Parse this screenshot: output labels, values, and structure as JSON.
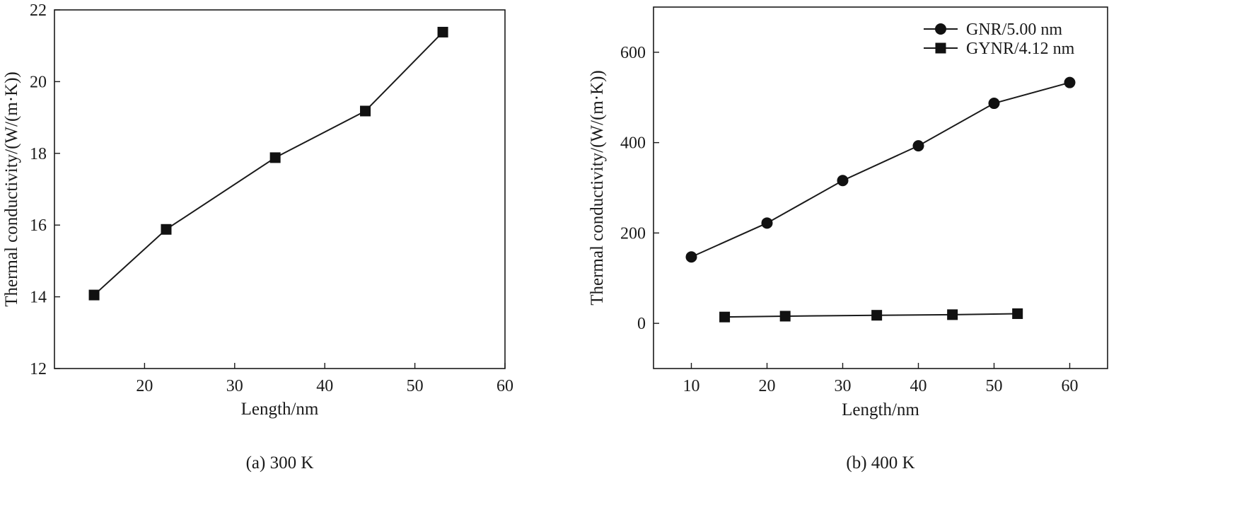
{
  "chart_data": [
    {
      "type": "line",
      "title": "",
      "caption": "(a) 300 K",
      "xlabel": "Length/nm",
      "ylabel": "Thermal conductivity/(W/(m·K))",
      "xlim": [
        10,
        60
      ],
      "ylim": [
        12,
        22
      ],
      "xticks": [
        20,
        30,
        40,
        50,
        60
      ],
      "yticks": [
        12,
        14,
        16,
        18,
        20,
        22
      ],
      "grid": false,
      "series": [
        {
          "name": "",
          "marker": "square",
          "x": [
            14.4,
            22.4,
            34.5,
            44.5,
            53.1
          ],
          "y": [
            14.05,
            15.88,
            17.88,
            19.18,
            21.38
          ]
        }
      ]
    },
    {
      "type": "line",
      "title": "",
      "caption": "(b) 400 K",
      "xlabel": "Length/nm",
      "ylabel": "Thermal conductivity/(W/(m·K))",
      "xlim": [
        5,
        65
      ],
      "ylim": [
        -100,
        700
      ],
      "xticks": [
        10,
        20,
        30,
        40,
        50,
        60
      ],
      "yticks": [
        0,
        200,
        400,
        600
      ],
      "grid": false,
      "legend_position": "top-right",
      "series": [
        {
          "name": "GNR/5.00 nm",
          "marker": "circle",
          "x": [
            10,
            20,
            30,
            40,
            50,
            60
          ],
          "y": [
            147,
            222,
            316,
            393,
            487,
            533
          ]
        },
        {
          "name": "GYNR/4.12 nm",
          "marker": "square",
          "x": [
            14.4,
            22.4,
            34.5,
            44.5,
            53.1
          ],
          "y": [
            14.0,
            15.9,
            17.9,
            19.2,
            21.4
          ]
        }
      ]
    }
  ]
}
